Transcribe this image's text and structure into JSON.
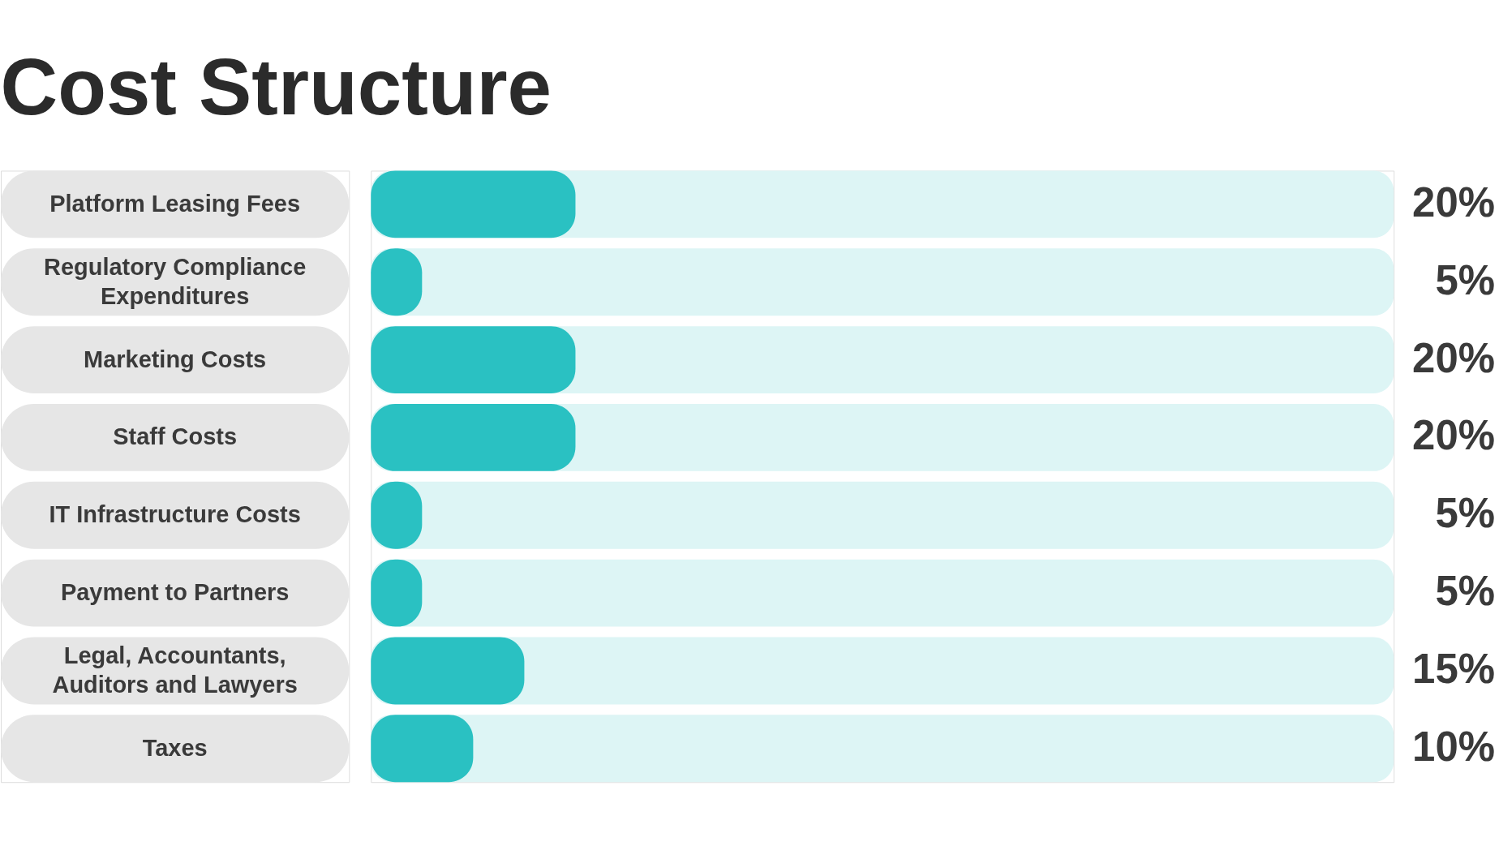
{
  "chart_data": {
    "type": "bar",
    "orientation": "horizontal",
    "title": "Cost Structure",
    "categories": [
      "Platform Leasing Fees",
      "Regulatory Compliance Expenditures",
      "Marketing Costs",
      "Staff Costs",
      "IT Infrastructure Costs",
      "Payment to Partners",
      "Legal, Accountants, Auditors and Lawyers",
      "Taxes"
    ],
    "values": [
      20,
      5,
      20,
      20,
      5,
      5,
      15,
      10
    ],
    "value_labels": [
      "20%",
      "5%",
      "20%",
      "20%",
      "5%",
      "5%",
      "15%",
      "10%"
    ],
    "color": "#2ac1c2",
    "bands": [
      {
        "axis": "x",
        "from": 0,
        "to": 100,
        "color": "#ddf5f5"
      }
    ],
    "tick_labels": "y"
  }
}
